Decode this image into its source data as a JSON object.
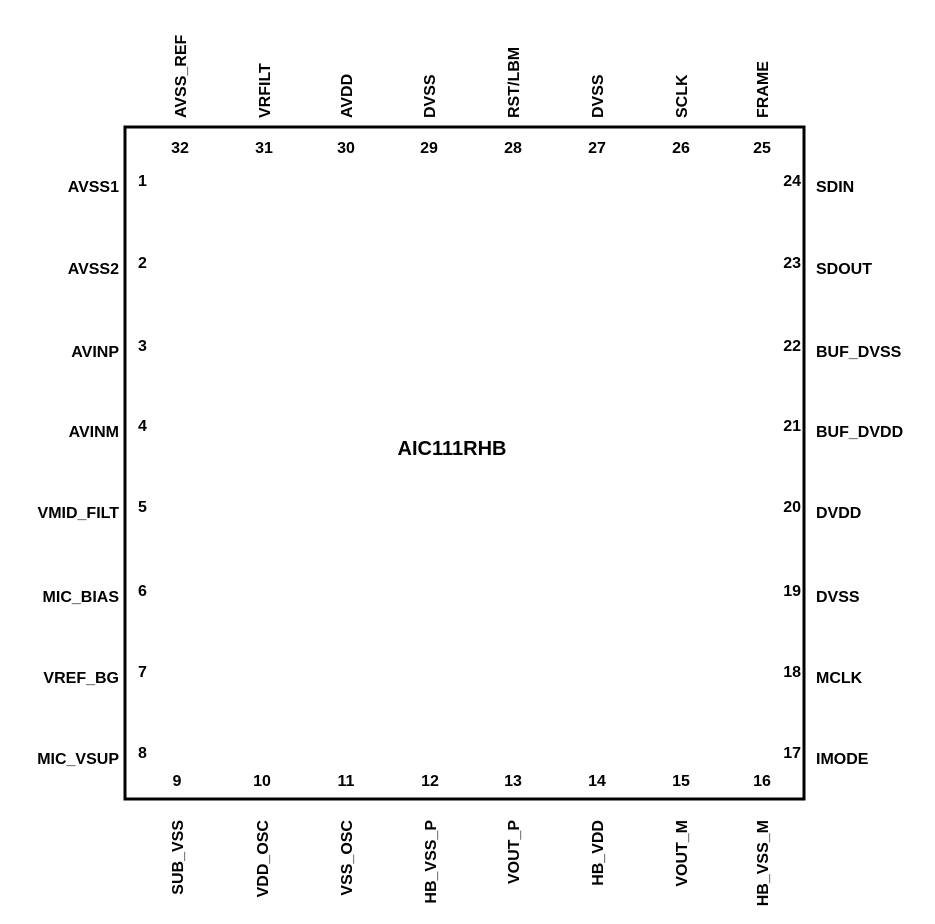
{
  "chip": {
    "name": "AIC111RHB",
    "border_color": "#000000",
    "text_color": "#000000",
    "background": "#ffffff"
  },
  "pins": {
    "left": [
      {
        "number": "1",
        "name": "AVSS1"
      },
      {
        "number": "2",
        "name": "AVSS2"
      },
      {
        "number": "3",
        "name": "AVINP"
      },
      {
        "number": "4",
        "name": "AVINM"
      },
      {
        "number": "5",
        "name": "VMID_FILT"
      },
      {
        "number": "6",
        "name": "MIC_BIAS"
      },
      {
        "number": "7",
        "name": "VREF_BG"
      },
      {
        "number": "8",
        "name": "MIC_VSUP"
      }
    ],
    "bottom": [
      {
        "number": "9",
        "name": "SUB_VSS"
      },
      {
        "number": "10",
        "name": "VDD_OSC"
      },
      {
        "number": "11",
        "name": "VSS_OSC"
      },
      {
        "number": "12",
        "name": "HB_VSS_P"
      },
      {
        "number": "13",
        "name": "VOUT_P"
      },
      {
        "number": "14",
        "name": "HB_VDD"
      },
      {
        "number": "15",
        "name": "VOUT_M"
      },
      {
        "number": "16",
        "name": "HB_VSS_M"
      }
    ],
    "right": [
      {
        "number": "17",
        "name": "IMODE"
      },
      {
        "number": "18",
        "name": "MCLK"
      },
      {
        "number": "19",
        "name": "DVSS"
      },
      {
        "number": "20",
        "name": "DVDD"
      },
      {
        "number": "21",
        "name": "BUF_DVDD"
      },
      {
        "number": "22",
        "name": "BUF_DVSS"
      },
      {
        "number": "23",
        "name": "SDOUT"
      },
      {
        "number": "24",
        "name": "SDIN"
      }
    ],
    "top": [
      {
        "number": "25",
        "name": "FRAME"
      },
      {
        "number": "26",
        "name": "SCLK"
      },
      {
        "number": "27",
        "name": "DVSS"
      },
      {
        "number": "28",
        "name": "RST/LBM"
      },
      {
        "number": "29",
        "name": "DVSS"
      },
      {
        "number": "30",
        "name": "AVDD"
      },
      {
        "number": "31",
        "name": "VRFILT"
      },
      {
        "number": "32",
        "name": "AVSS_REF"
      }
    ]
  }
}
